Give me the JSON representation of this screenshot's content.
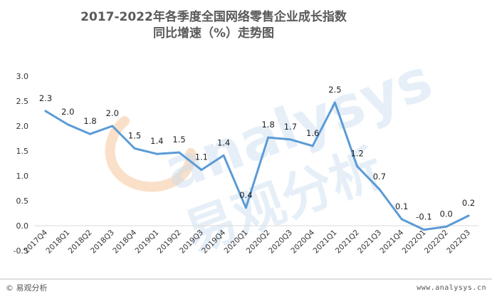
{
  "title_line1": "2017-2022年各季度全国网络零售企业成长指数",
  "title_line2": "同比增速（%）走势图",
  "footer": {
    "left_icon": "copyright-icon",
    "left": "易观分析",
    "right": "www.analysys.cn"
  },
  "watermark": {
    "latin": "analysys",
    "cjk": "易观分析"
  },
  "colors": {
    "line": "#5b9bd5",
    "grid": "#d9d9d9",
    "watermark_orange": "#f6c79a",
    "watermark_blue": "#c9dcef"
  },
  "chart_data": {
    "type": "line",
    "categories": [
      "2017Q4",
      "2018Q1",
      "2018Q2",
      "2018Q3",
      "2018Q4",
      "2019Q1",
      "2019Q2",
      "2019Q3",
      "2019Q4",
      "2020Q1",
      "2020Q2",
      "2020Q3",
      "2020Q4",
      "2021Q1",
      "2021Q2",
      "2021Q3",
      "2021Q4",
      "2022Q1",
      "2022Q2",
      "2022Q3"
    ],
    "series": [
      {
        "values": [
          2.3,
          2.03,
          1.84,
          2.0,
          1.55,
          1.44,
          1.47,
          1.12,
          1.41,
          0.36,
          1.77,
          1.73,
          1.6,
          2.47,
          1.19,
          0.73,
          0.13,
          -0.08,
          -0.02,
          0.2
        ],
        "labels": [
          "2.3",
          "2.0",
          "1.8",
          "2.0",
          "1.5",
          "1.4",
          "1.5",
          "1.1",
          "1.4",
          "0.4",
          "1.8",
          "1.7",
          "1.6",
          "2.5",
          "1.2",
          "0.7",
          "0.1",
          "-0.1",
          "0.0",
          "0.2"
        ]
      }
    ],
    "y_ticks": [
      "3.0",
      "2.5",
      "2.0",
      "1.5",
      "1.0",
      "0.5",
      "0.0",
      "-0.5"
    ],
    "ylim": [
      -0.5,
      3.0
    ],
    "grid": false,
    "legend": "none"
  }
}
